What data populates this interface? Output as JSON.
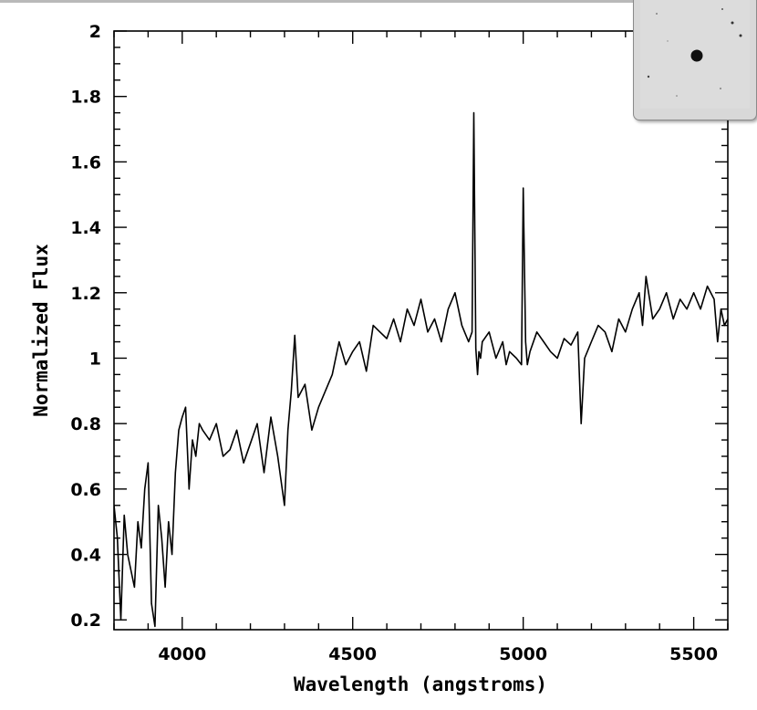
{
  "chart_data": {
    "type": "line",
    "title": "",
    "xlabel": "Wavelength (angstroms)",
    "ylabel": "Normalized Flux",
    "xlim": [
      3800,
      5600
    ],
    "ylim": [
      0.17,
      2.0
    ],
    "x_ticks": [
      4000,
      4500,
      5000,
      5500
    ],
    "y_ticks": [
      0.2,
      0.4,
      0.6,
      0.8,
      1,
      1.2,
      1.4,
      1.6,
      1.8,
      2
    ],
    "y_tick_labels": [
      "0.2",
      "0.4",
      "0.6",
      "0.8",
      "1",
      "1.2",
      "1.4",
      "1.6",
      "1.8",
      "2"
    ],
    "x_minor_step": 100,
    "y_minor_step": 0.05,
    "grid": false,
    "series": [
      {
        "color": "#000000",
        "x": [
          3800,
          3810,
          3820,
          3830,
          3840,
          3850,
          3860,
          3870,
          3880,
          3890,
          3900,
          3910,
          3920,
          3930,
          3940,
          3950,
          3960,
          3970,
          3980,
          3990,
          4000,
          4010,
          4020,
          4030,
          4040,
          4050,
          4060,
          4080,
          4100,
          4120,
          4140,
          4160,
          4180,
          4200,
          4220,
          4240,
          4260,
          4280,
          4300,
          4310,
          4320,
          4330,
          4340,
          4360,
          4380,
          4400,
          4420,
          4440,
          4460,
          4480,
          4500,
          4520,
          4540,
          4560,
          4580,
          4600,
          4620,
          4640,
          4660,
          4680,
          4700,
          4720,
          4740,
          4760,
          4780,
          4800,
          4820,
          4840,
          4850,
          4855,
          4861,
          4866,
          4870,
          4875,
          4880,
          4900,
          4920,
          4940,
          4950,
          4960,
          4980,
          4995,
          5000,
          5007,
          5012,
          5020,
          5040,
          5060,
          5080,
          5100,
          5120,
          5140,
          5160,
          5170,
          5180,
          5200,
          5220,
          5240,
          5260,
          5280,
          5300,
          5320,
          5340,
          5350,
          5360,
          5380,
          5400,
          5420,
          5440,
          5460,
          5480,
          5500,
          5520,
          5540,
          5560,
          5570,
          5580,
          5590,
          5600
        ],
        "y": [
          0.55,
          0.45,
          0.2,
          0.52,
          0.4,
          0.35,
          0.3,
          0.5,
          0.42,
          0.6,
          0.68,
          0.25,
          0.18,
          0.55,
          0.45,
          0.3,
          0.5,
          0.4,
          0.65,
          0.78,
          0.82,
          0.85,
          0.6,
          0.75,
          0.7,
          0.8,
          0.78,
          0.75,
          0.8,
          0.7,
          0.72,
          0.78,
          0.68,
          0.74,
          0.8,
          0.65,
          0.82,
          0.7,
          0.55,
          0.78,
          0.9,
          1.07,
          0.88,
          0.92,
          0.78,
          0.85,
          0.9,
          0.95,
          1.05,
          0.98,
          1.02,
          1.05,
          0.96,
          1.1,
          1.08,
          1.06,
          1.12,
          1.05,
          1.15,
          1.1,
          1.18,
          1.08,
          1.12,
          1.05,
          1.15,
          1.2,
          1.1,
          1.05,
          1.08,
          1.75,
          1.03,
          0.95,
          1.02,
          1.0,
          1.05,
          1.08,
          1.0,
          1.05,
          0.98,
          1.02,
          1.0,
          0.98,
          1.52,
          1.05,
          0.98,
          1.02,
          1.08,
          1.05,
          1.02,
          1.0,
          1.06,
          1.04,
          1.08,
          0.8,
          1.0,
          1.05,
          1.1,
          1.08,
          1.02,
          1.12,
          1.08,
          1.15,
          1.2,
          1.1,
          1.25,
          1.12,
          1.15,
          1.2,
          1.12,
          1.18,
          1.15,
          1.2,
          1.15,
          1.22,
          1.18,
          1.05,
          1.15,
          1.1,
          1.12
        ]
      }
    ]
  },
  "thumbnail": {
    "background": "#dcdcdc",
    "star_color": "#111111"
  }
}
